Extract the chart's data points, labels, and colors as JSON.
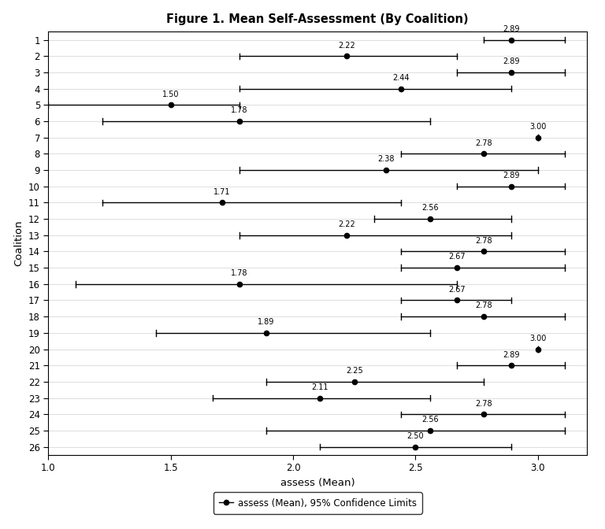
{
  "title": "Figure 1. Mean Self-Assessment (By Coalition)",
  "xlabel": "assess (Mean)",
  "ylabel": "Coalition",
  "xlim": [
    1.0,
    3.2
  ],
  "ylim": [
    0.5,
    26.5
  ],
  "coalitions": [
    1,
    2,
    3,
    4,
    5,
    6,
    7,
    8,
    9,
    10,
    11,
    12,
    13,
    14,
    15,
    16,
    17,
    18,
    19,
    20,
    21,
    22,
    23,
    24,
    25,
    26
  ],
  "means": [
    2.89,
    2.22,
    2.89,
    2.44,
    1.5,
    1.78,
    3.0,
    2.78,
    2.38,
    2.89,
    1.71,
    2.56,
    2.22,
    2.78,
    2.67,
    1.78,
    2.67,
    2.78,
    1.89,
    3.0,
    2.89,
    2.25,
    2.11,
    2.78,
    2.56,
    2.5
  ],
  "ci_low": [
    2.78,
    1.78,
    2.67,
    1.78,
    1.0,
    1.22,
    3.0,
    2.44,
    1.78,
    2.67,
    1.22,
    2.33,
    1.78,
    2.44,
    2.44,
    1.11,
    2.44,
    2.44,
    1.44,
    3.0,
    2.67,
    1.89,
    1.67,
    2.44,
    1.89,
    2.11
  ],
  "ci_high": [
    3.11,
    2.67,
    3.11,
    2.89,
    1.78,
    2.56,
    3.0,
    3.11,
    3.0,
    3.11,
    2.44,
    2.89,
    2.89,
    3.11,
    3.11,
    2.67,
    2.89,
    3.11,
    2.56,
    3.0,
    3.11,
    2.78,
    2.56,
    3.11,
    3.11,
    2.89
  ],
  "background_color": "#ffffff",
  "dot_color": "#000000",
  "line_color": "#000000",
  "label_fontsize": 7.0,
  "title_fontsize": 10.5,
  "axis_label_fontsize": 9.5,
  "tick_fontsize": 8.5,
  "legend_label": "assess (Mean), 95% Confidence Limits",
  "xticks": [
    1.0,
    1.5,
    2.0,
    2.5,
    3.0
  ],
  "xtick_labels": [
    "1.0",
    "1.5",
    "2.0",
    "2.5",
    "3.0"
  ]
}
